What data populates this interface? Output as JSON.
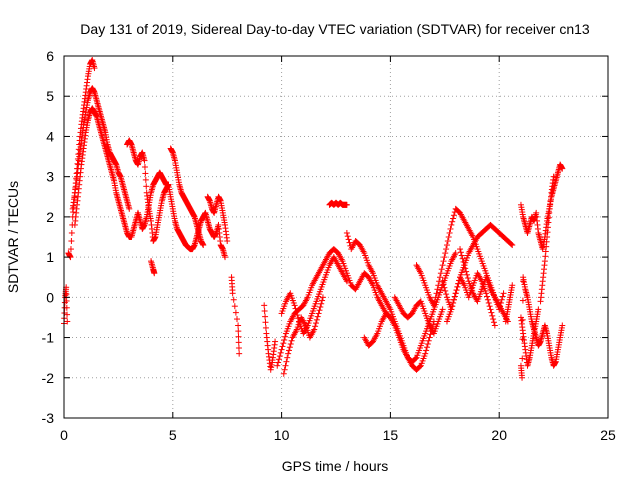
{
  "chart_data": {
    "type": "scatter",
    "title": "Day 131 of 2019, Sidereal Day-to-day VTEC variation (SDTVAR) for receiver cn13",
    "xlabel": "GPS time / hours",
    "ylabel": "SDTVAR / TECUs",
    "xlim": [
      0,
      25
    ],
    "ylim": [
      -3,
      6
    ],
    "xticks": [
      0,
      5,
      10,
      15,
      20,
      25
    ],
    "yticks": [
      -3,
      -2,
      -1,
      0,
      1,
      2,
      3,
      4,
      5,
      6
    ],
    "xtick_labels": [
      "0",
      "5",
      "10",
      "15",
      "20",
      "25"
    ],
    "ytick_labels": [
      "-3",
      "-2",
      "-1",
      "0",
      "1",
      "2",
      "3",
      "4",
      "5",
      "6"
    ],
    "grid": true,
    "marker": "+",
    "color": "#ff0000",
    "series": [
      {
        "name": "SDTVAR",
        "segments": [
          {
            "x": [
              0.0,
              0.05,
              0.1,
              0.15
            ],
            "y": [
              -0.65,
              0.0,
              0.25,
              -0.6
            ]
          },
          {
            "x": [
              0.2,
              0.3,
              0.4,
              0.5,
              0.6,
              0.7,
              0.8,
              0.9,
              1.0,
              1.1,
              1.2,
              1.3,
              1.4
            ],
            "y": [
              1.1,
              1.0,
              2.0,
              2.6,
              3.2,
              3.8,
              4.3,
              4.7,
              5.1,
              5.5,
              5.8,
              5.9,
              5.7
            ]
          },
          {
            "x": [
              0.4,
              0.5,
              0.6,
              0.7,
              0.8,
              0.9,
              1.0,
              1.1,
              1.2,
              1.3,
              1.4,
              1.5,
              1.6,
              1.7,
              1.8,
              1.9,
              2.0,
              2.1,
              2.2,
              2.3,
              2.4,
              2.5,
              2.6,
              2.7,
              2.8,
              2.9,
              3.0
            ],
            "y": [
              2.2,
              2.6,
              3.0,
              3.5,
              3.9,
              4.3,
              4.6,
              4.9,
              5.1,
              5.2,
              5.1,
              4.9,
              4.7,
              4.5,
              4.3,
              4.1,
              3.8,
              3.6,
              3.5,
              3.4,
              3.3,
              3.1,
              3.0,
              2.8,
              2.6,
              2.4,
              2.2
            ]
          },
          {
            "x": [
              0.5,
              0.6,
              0.7,
              0.8,
              0.9,
              1.0,
              1.1,
              1.2,
              1.3,
              1.4,
              1.5,
              1.6,
              1.7,
              1.8,
              1.9,
              2.0,
              2.1,
              2.2,
              2.3,
              2.4,
              2.5,
              2.6,
              2.7,
              2.8,
              2.9,
              3.0,
              3.1,
              3.2,
              3.3,
              3.4,
              3.5,
              3.6,
              3.7,
              3.8,
              3.9,
              4.0,
              4.1,
              4.2,
              4.3,
              4.4,
              4.5,
              4.6,
              4.7,
              4.8
            ],
            "y": [
              1.8,
              2.3,
              2.8,
              3.3,
              3.7,
              4.1,
              4.4,
              4.6,
              4.7,
              4.6,
              4.5,
              4.3,
              4.1,
              3.9,
              3.7,
              3.5,
              3.3,
              3.1,
              2.9,
              2.6,
              2.4,
              2.2,
              2.0,
              1.8,
              1.6,
              1.5,
              1.5,
              1.7,
              1.9,
              2.1,
              1.9,
              1.7,
              1.8,
              2.0,
              2.3,
              2.6,
              2.8,
              2.9,
              3.0,
              3.1,
              3.0,
              2.9,
              2.8,
              2.8
            ]
          },
          {
            "x": [
              2.9,
              3.0,
              3.1,
              3.2,
              3.3,
              3.4,
              3.5,
              3.6,
              3.7,
              3.8,
              3.9,
              4.0,
              4.1,
              4.2,
              4.3,
              4.4,
              4.5,
              4.6,
              4.7,
              4.8,
              4.9,
              5.0,
              5.1,
              5.2,
              5.3,
              5.4,
              5.5,
              5.6,
              5.7,
              5.8,
              5.9,
              6.0,
              6.1,
              6.2,
              6.3,
              6.4,
              6.5,
              6.6,
              6.7,
              6.8,
              6.9,
              7.0,
              7.1,
              7.2,
              7.3,
              7.4
            ],
            "y": [
              3.8,
              3.9,
              3.8,
              3.6,
              3.4,
              3.3,
              3.5,
              3.6,
              3.4,
              2.6,
              2.2,
              1.9,
              1.4,
              1.5,
              1.8,
              2.1,
              2.4,
              2.6,
              2.7,
              2.8,
              2.5,
              2.2,
              1.9,
              1.7,
              1.6,
              1.5,
              1.4,
              1.3,
              1.25,
              1.2,
              1.2,
              1.3,
              1.5,
              1.7,
              1.9,
              2.0,
              2.1,
              1.9,
              1.7,
              1.6,
              1.5,
              1.6,
              1.8,
              1.3,
              1.2,
              1.0
            ]
          },
          {
            "x": [
              4.0,
              4.1,
              4.15
            ],
            "y": [
              0.9,
              0.7,
              0.6
            ]
          },
          {
            "x": [
              4.9,
              5.0,
              5.1,
              5.2,
              5.3,
              5.4,
              5.5,
              5.6,
              5.7,
              5.8,
              5.9,
              6.0,
              6.1,
              6.2,
              6.3,
              6.4
            ],
            "y": [
              3.7,
              3.6,
              3.4,
              3.1,
              2.8,
              2.6,
              2.5,
              2.4,
              2.3,
              2.2,
              2.1,
              2.0,
              1.8,
              1.6,
              1.4,
              1.3
            ]
          },
          {
            "x": [
              6.6,
              6.7,
              6.8,
              6.9,
              7.0,
              7.1,
              7.2,
              7.3,
              7.4,
              7.5
            ],
            "y": [
              2.5,
              2.4,
              2.2,
              2.1,
              2.3,
              2.5,
              2.4,
              2.1,
              1.8,
              1.4
            ]
          },
          {
            "x": [
              7.7,
              7.75,
              8.0,
              8.05
            ],
            "y": [
              0.5,
              0.1,
              -0.7,
              -1.4
            ]
          },
          {
            "x": [
              9.2,
              9.3,
              9.4,
              9.5,
              9.6,
              9.7
            ],
            "y": [
              -0.2,
              -0.9,
              -1.4,
              -1.8,
              -1.5,
              -1.1
            ]
          },
          {
            "x": [
              9.8,
              10.0,
              10.2,
              10.4,
              10.6,
              10.8,
              11.0,
              11.2,
              11.4,
              11.6,
              11.8,
              12.0,
              12.2,
              12.4,
              12.6,
              12.8,
              13.0,
              13.2,
              13.4,
              13.6,
              13.8,
              14.0,
              14.2,
              14.4,
              14.6,
              14.8,
              15.0
            ],
            "y": [
              -1.7,
              -1.3,
              -0.9,
              -0.6,
              -0.4,
              -0.3,
              -0.2,
              0.0,
              0.3,
              0.5,
              0.7,
              0.9,
              1.1,
              1.2,
              1.1,
              0.9,
              0.6,
              0.3,
              0.2,
              0.4,
              0.6,
              0.5,
              0.3,
              0.0,
              -0.2,
              -0.4,
              -0.5
            ]
          },
          {
            "x": [
              10.0,
              10.2,
              10.4,
              10.6,
              10.8,
              11.0,
              11.2,
              11.4,
              11.6,
              11.8,
              12.0,
              12.2,
              12.4,
              12.6,
              12.8,
              13.0
            ],
            "y": [
              -0.4,
              -0.1,
              0.1,
              -0.2,
              -0.6,
              -0.9,
              -0.7,
              -0.4,
              -0.1,
              0.2,
              0.5,
              0.8,
              1.0,
              0.8,
              0.6,
              0.4
            ]
          },
          {
            "x": [
              10.1,
              10.3,
              10.5,
              10.7,
              10.9,
              11.1,
              11.3,
              11.5,
              11.7,
              11.9
            ],
            "y": [
              -1.9,
              -1.4,
              -1.0,
              -0.8,
              -0.5,
              -0.7,
              -1.0,
              -0.8,
              -0.4,
              0.0
            ]
          },
          {
            "x": [
              12.2,
              12.3,
              12.4,
              12.5,
              12.6,
              12.7,
              12.8,
              12.9,
              13.0
            ],
            "y": [
              2.3,
              2.35,
              2.3,
              2.35,
              2.3,
              2.35,
              2.3,
              2.3,
              2.3
            ]
          },
          {
            "x": [
              13.0,
              13.2,
              13.4,
              13.6,
              13.8,
              14.0,
              14.2,
              14.4,
              14.6,
              14.8,
              15.0,
              15.2,
              15.4,
              15.6,
              15.8,
              16.0,
              16.2,
              16.4,
              16.6,
              16.8,
              17.0
            ],
            "y": [
              1.6,
              1.2,
              1.4,
              1.3,
              1.1,
              0.8,
              0.6,
              0.3,
              0.1,
              -0.1,
              -0.3,
              -0.6,
              -0.9,
              -1.2,
              -1.5,
              -1.7,
              -1.8,
              -1.7,
              -1.4,
              -1.0,
              -0.6
            ]
          },
          {
            "x": [
              13.8,
              14.0,
              14.2,
              14.4,
              14.6,
              14.8,
              15.0,
              15.2,
              15.4,
              15.6,
              15.8,
              16.0,
              16.2,
              16.4,
              16.6,
              16.8,
              17.0,
              17.2,
              17.4,
              17.6,
              17.8,
              18.0
            ],
            "y": [
              -1.0,
              -1.2,
              -1.1,
              -0.9,
              -0.6,
              -0.4,
              -0.5,
              -0.7,
              -1.0,
              -1.3,
              -1.5,
              -1.6,
              -1.5,
              -1.2,
              -0.9,
              -0.6,
              -0.3,
              0.0,
              0.3,
              0.6,
              0.9,
              1.1
            ]
          },
          {
            "x": [
              15.2,
              15.4,
              15.6,
              15.8,
              16.0,
              16.2,
              16.4,
              16.6,
              16.8,
              17.0,
              17.2,
              17.4
            ],
            "y": [
              0.0,
              -0.2,
              -0.4,
              -0.5,
              -0.4,
              -0.2,
              -0.1,
              -0.4,
              -0.7,
              -0.9,
              -0.6,
              -0.3
            ]
          },
          {
            "x": [
              16.2,
              16.4,
              16.6,
              16.8,
              17.0,
              17.2,
              17.4,
              17.6,
              17.8,
              18.0,
              18.2,
              18.4,
              18.6,
              18.8,
              19.0,
              19.2,
              19.4,
              19.6,
              19.8,
              20.0,
              20.2,
              20.4
            ],
            "y": [
              0.8,
              0.6,
              0.3,
              0.0,
              -0.2,
              0.3,
              0.8,
              1.3,
              1.8,
              2.2,
              2.1,
              1.9,
              1.7,
              1.5,
              1.2,
              0.9,
              0.6,
              0.3,
              0.0,
              -0.2,
              -0.4,
              -0.6
            ]
          },
          {
            "x": [
              17.6,
              17.8,
              18.0,
              18.2,
              18.4,
              18.6,
              18.8,
              19.0,
              19.2,
              19.4,
              19.6,
              19.8,
              20.0,
              20.2,
              20.4,
              20.6
            ],
            "y": [
              -0.6,
              -0.3,
              0.1,
              0.5,
              0.8,
              1.1,
              1.3,
              1.5,
              1.6,
              1.7,
              1.8,
              1.7,
              1.6,
              1.5,
              1.4,
              1.3
            ]
          },
          {
            "x": [
              17.4,
              17.6,
              17.8,
              18.0,
              18.2,
              18.4,
              18.6,
              18.8,
              19.0,
              19.2,
              19.4,
              19.6,
              19.8
            ],
            "y": [
              0.4,
              0.0,
              -0.3,
              0.1,
              0.5,
              0.3,
              0.0,
              0.3,
              0.6,
              0.4,
              0.1,
              -0.3,
              -0.7
            ]
          },
          {
            "x": [
              18.2,
              18.4,
              18.6,
              18.8,
              19.0,
              19.2,
              19.4,
              19.6,
              19.8,
              20.0,
              20.2
            ],
            "y": [
              1.2,
              0.8,
              0.4,
              0.1,
              -0.1,
              0.2,
              0.5,
              0.2,
              0.0,
              -0.3,
              0.1
            ]
          },
          {
            "x": [
              20.3,
              20.4,
              20.5,
              20.6
            ],
            "y": [
              -0.6,
              -0.3,
              0.0,
              0.3
            ]
          },
          {
            "x": [
              21.0,
              21.1,
              21.2,
              21.3,
              21.4,
              21.5,
              21.6,
              21.7,
              21.8,
              21.9,
              22.0,
              22.1,
              22.2,
              22.3,
              22.4,
              22.5,
              22.6,
              22.7,
              22.8,
              22.9
            ],
            "y": [
              2.3,
              2.0,
              1.8,
              1.6,
              1.8,
              2.0,
              1.9,
              2.1,
              1.6,
              1.4,
              1.2,
              1.5,
              1.9,
              2.2,
              2.5,
              2.7,
              2.9,
              3.1,
              3.3,
              3.2
            ]
          },
          {
            "x": [
              21.0,
              21.1,
              21.2,
              21.3,
              21.4,
              21.5,
              21.6,
              21.7,
              21.8
            ],
            "y": [
              -0.5,
              -0.9,
              -1.3,
              -1.7,
              -1.5,
              -1.2,
              -0.9,
              -0.6,
              -0.3
            ]
          },
          {
            "x": [
              21.1,
              21.2,
              21.3,
              21.4,
              21.5,
              21.6,
              21.7,
              21.8,
              21.9,
              22.0,
              22.1,
              22.2,
              22.3,
              22.4,
              22.5,
              22.6,
              22.7,
              22.8,
              22.9
            ],
            "y": [
              0.5,
              0.2,
              0.0,
              -0.3,
              -0.6,
              -0.8,
              -1.0,
              -1.2,
              -1.1,
              -0.9,
              -0.7,
              -0.9,
              -1.2,
              -1.5,
              -1.7,
              -1.6,
              -1.3,
              -1.0,
              -0.7
            ]
          },
          {
            "x": [
              21.0,
              21.05,
              21.1
            ],
            "y": [
              -1.7,
              -2.0,
              0.4
            ]
          },
          {
            "x": [
              21.9,
              22.0,
              22.1,
              22.2,
              22.3,
              22.4,
              22.5
            ],
            "y": [
              -0.1,
              0.4,
              0.9,
              1.5,
              2.1,
              2.6,
              3.0
            ]
          }
        ]
      }
    ]
  }
}
